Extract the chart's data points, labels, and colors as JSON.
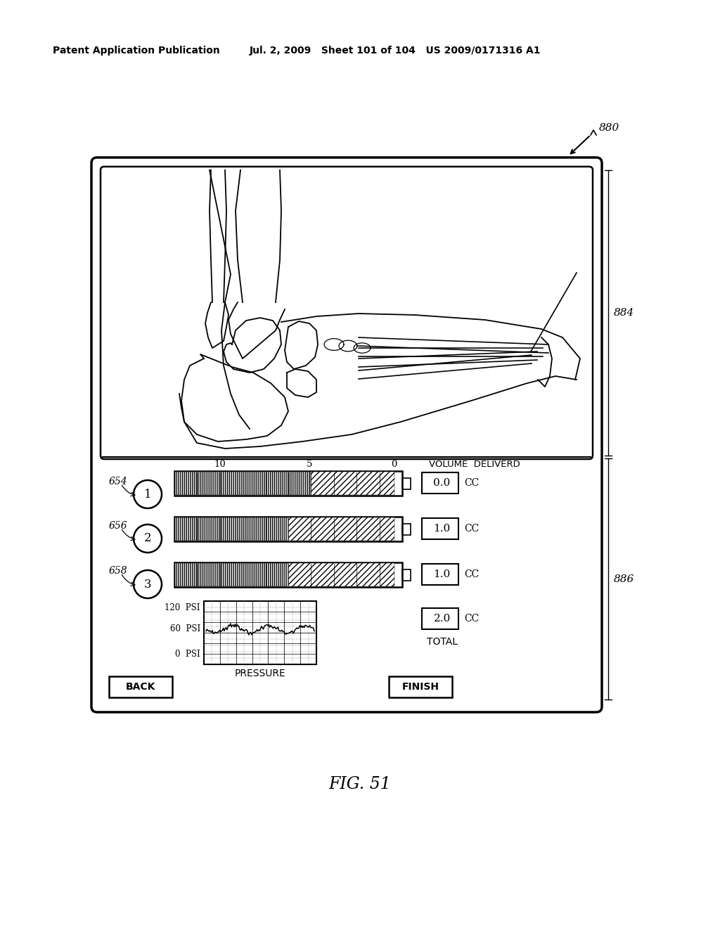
{
  "bg_color": "#ffffff",
  "header_left": "Patent Application Publication",
  "header_mid": "Jul. 2, 2009   Sheet 101 of 104   US 2009/0171316 A1",
  "fig_label": "FIG. 51",
  "ref_880": "880",
  "ref_884": "884",
  "ref_886": "886",
  "ref_654": "654",
  "ref_656": "656",
  "ref_658": "658",
  "vol_values": [
    "0.0",
    "1.0",
    "1.0"
  ],
  "total_value": "2.0",
  "psi_labels": [
    "120  PSI",
    "60  PSI",
    "0  PSI"
  ],
  "scale_labels": [
    "10",
    "5",
    "0"
  ],
  "vol_header": "VOLUME  DELIVERD",
  "pressure_label": "PRESSURE",
  "total_label": "TOTAL",
  "back_label": "BACK",
  "finish_label": "FINISH",
  "cc_label": "CC"
}
